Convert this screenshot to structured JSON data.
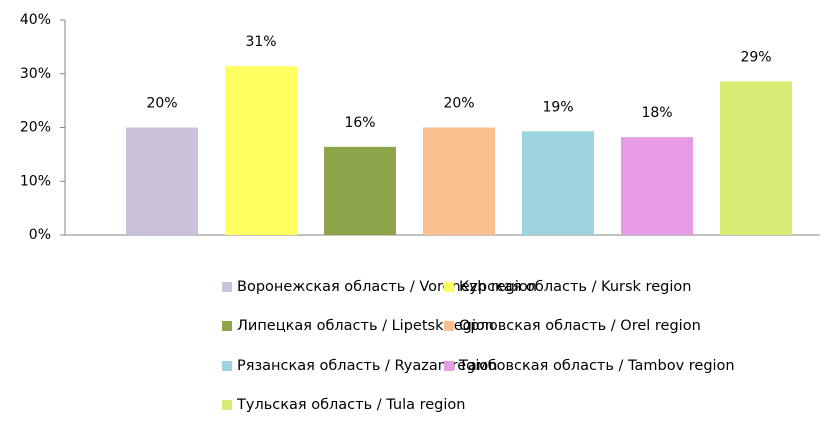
{
  "chart_data": {
    "type": "bar",
    "ylim": [
      0,
      40
    ],
    "yticks": [
      {
        "value": 0,
        "label": "0%"
      },
      {
        "value": 10,
        "label": "10%"
      },
      {
        "value": 20,
        "label": "20%"
      },
      {
        "value": 30,
        "label": "30%"
      },
      {
        "value": 40,
        "label": "40%"
      }
    ],
    "grid": false,
    "series": [
      {
        "name": "Воронежская область / Voronezh region",
        "color": "#ccc1da",
        "values": [
          20.0
        ],
        "value_labels": [
          "20%"
        ]
      },
      {
        "name": "Курская область / Kursk region",
        "color": "#ffff5f",
        "values": [
          31.4
        ],
        "value_labels": [
          "31%"
        ]
      },
      {
        "name": "Липецкая область / Lipetsk region",
        "color": "#8ea54b",
        "values": [
          16.4
        ],
        "value_labels": [
          "16%"
        ]
      },
      {
        "name": "Орловская область / Orel region",
        "color": "#fac090",
        "values": [
          20.0
        ],
        "value_labels": [
          "20%"
        ]
      },
      {
        "name": "Рязанская область / Ryazan region",
        "color": "#9dd3df",
        "values": [
          19.3
        ],
        "value_labels": [
          "19%"
        ]
      },
      {
        "name": "Тамбовская область / Tambov region",
        "color": "#e59ce5",
        "values": [
          18.2
        ],
        "value_labels": [
          "18%"
        ]
      },
      {
        "name": "Тульская область / Tula region",
        "color": "#d9ea75",
        "values": [
          28.6
        ],
        "value_labels": [
          "29%"
        ]
      }
    ]
  }
}
